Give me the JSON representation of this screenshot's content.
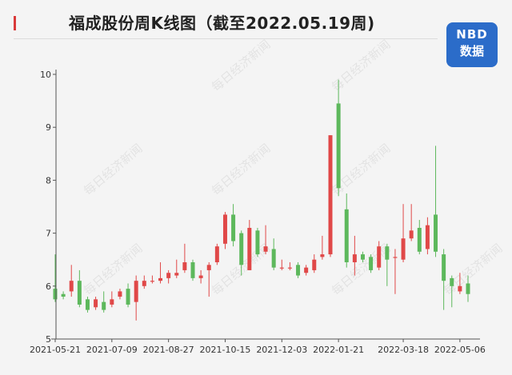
{
  "header": {
    "title": "福成股份周K线图（截至2022.05.19周)",
    "logo_top": "NBD",
    "logo_bottom": "数据"
  },
  "watermark": "每日经济新闻",
  "colors": {
    "up": "#e04848",
    "down": "#5db85c",
    "axis": "#555555",
    "bg": "#f4f4f4"
  },
  "chart_data": {
    "type": "candlestick",
    "title": "福成股份周K线图（截至2022.05.19周)",
    "ylim": [
      5,
      10
    ],
    "yticks": [
      5,
      6,
      7,
      8,
      9,
      10
    ],
    "xticks": [
      "2021-05-21",
      "2021-07-09",
      "2021-08-27",
      "2021-10-15",
      "2021-12-03",
      "2022-01-21",
      "2022-03-18",
      "2022-05-06"
    ],
    "xtick_index": [
      0,
      7,
      14,
      21,
      28,
      35,
      43,
      50
    ],
    "candles": [
      {
        "o": 5.95,
        "c": 5.75,
        "h": 6.6,
        "l": 5.7
      },
      {
        "o": 5.85,
        "c": 5.8,
        "h": 5.9,
        "l": 5.75
      },
      {
        "o": 5.9,
        "c": 6.1,
        "h": 6.4,
        "l": 5.8
      },
      {
        "o": 6.1,
        "c": 5.65,
        "h": 6.3,
        "l": 5.6
      },
      {
        "o": 5.75,
        "c": 5.55,
        "h": 5.8,
        "l": 5.5
      },
      {
        "o": 5.6,
        "c": 5.75,
        "h": 5.8,
        "l": 5.55
      },
      {
        "o": 5.7,
        "c": 5.55,
        "h": 5.9,
        "l": 5.5
      },
      {
        "o": 5.65,
        "c": 5.75,
        "h": 5.9,
        "l": 5.6
      },
      {
        "o": 5.8,
        "c": 5.9,
        "h": 5.95,
        "l": 5.75
      },
      {
        "o": 5.95,
        "c": 5.65,
        "h": 6.05,
        "l": 5.6
      },
      {
        "o": 5.7,
        "c": 6.1,
        "h": 6.2,
        "l": 5.35
      },
      {
        "o": 6.0,
        "c": 6.1,
        "h": 6.2,
        "l": 5.95
      },
      {
        "o": 6.1,
        "c": 6.1,
        "h": 6.2,
        "l": 6.05
      },
      {
        "o": 6.1,
        "c": 6.15,
        "h": 6.45,
        "l": 6.05
      },
      {
        "o": 6.15,
        "c": 6.25,
        "h": 6.3,
        "l": 6.05
      },
      {
        "o": 6.2,
        "c": 6.25,
        "h": 6.5,
        "l": 6.15
      },
      {
        "o": 6.3,
        "c": 6.45,
        "h": 6.8,
        "l": 6.25
      },
      {
        "o": 6.45,
        "c": 6.15,
        "h": 6.5,
        "l": 6.1
      },
      {
        "o": 6.15,
        "c": 6.2,
        "h": 6.3,
        "l": 6.05
      },
      {
        "o": 6.3,
        "c": 6.4,
        "h": 6.45,
        "l": 5.8
      },
      {
        "o": 6.45,
        "c": 6.75,
        "h": 6.8,
        "l": 6.4
      },
      {
        "o": 6.8,
        "c": 7.35,
        "h": 7.4,
        "l": 6.7
      },
      {
        "o": 7.35,
        "c": 6.85,
        "h": 7.55,
        "l": 6.75
      },
      {
        "o": 7.0,
        "c": 6.4,
        "h": 7.05,
        "l": 6.2
      },
      {
        "o": 6.3,
        "c": 7.1,
        "h": 7.25,
        "l": 6.3
      },
      {
        "o": 7.05,
        "c": 6.6,
        "h": 7.1,
        "l": 6.55
      },
      {
        "o": 6.65,
        "c": 6.75,
        "h": 7.15,
        "l": 6.6
      },
      {
        "o": 6.7,
        "c": 6.35,
        "h": 6.9,
        "l": 6.3
      },
      {
        "o": 6.35,
        "c": 6.35,
        "h": 6.5,
        "l": 6.3
      },
      {
        "o": 6.35,
        "c": 6.35,
        "h": 6.45,
        "l": 6.3
      },
      {
        "o": 6.4,
        "c": 6.2,
        "h": 6.45,
        "l": 6.15
      },
      {
        "o": 6.25,
        "c": 6.35,
        "h": 6.4,
        "l": 6.2
      },
      {
        "o": 6.3,
        "c": 6.5,
        "h": 6.6,
        "l": 6.25
      },
      {
        "o": 6.55,
        "c": 6.6,
        "h": 6.95,
        "l": 6.5
      },
      {
        "o": 6.6,
        "c": 8.85,
        "h": 8.85,
        "l": 6.55
      },
      {
        "o": 9.45,
        "c": 7.85,
        "h": 9.9,
        "l": 7.7
      },
      {
        "o": 7.45,
        "c": 6.45,
        "h": 7.75,
        "l": 6.35
      },
      {
        "o": 6.45,
        "c": 6.6,
        "h": 6.95,
        "l": 6.2
      },
      {
        "o": 6.6,
        "c": 6.5,
        "h": 6.65,
        "l": 6.45
      },
      {
        "o": 6.55,
        "c": 6.3,
        "h": 6.6,
        "l": 6.25
      },
      {
        "o": 6.35,
        "c": 6.75,
        "h": 6.85,
        "l": 6.3
      },
      {
        "o": 6.75,
        "c": 6.5,
        "h": 6.8,
        "l": 6.0
      },
      {
        "o": 6.55,
        "c": 6.55,
        "h": 6.7,
        "l": 5.85
      },
      {
        "o": 6.5,
        "c": 6.9,
        "h": 7.55,
        "l": 6.45
      },
      {
        "o": 6.9,
        "c": 7.05,
        "h": 7.55,
        "l": 6.85
      },
      {
        "o": 7.1,
        "c": 6.65,
        "h": 7.25,
        "l": 6.6
      },
      {
        "o": 6.7,
        "c": 7.15,
        "h": 7.3,
        "l": 6.6
      },
      {
        "o": 7.35,
        "c": 6.65,
        "h": 8.65,
        "l": 6.55
      },
      {
        "o": 6.6,
        "c": 6.1,
        "h": 6.7,
        "l": 5.55
      },
      {
        "o": 6.15,
        "c": 6.0,
        "h": 6.2,
        "l": 5.6
      },
      {
        "o": 5.9,
        "c": 6.0,
        "h": 6.25,
        "l": 5.85
      },
      {
        "o": 6.05,
        "c": 5.85,
        "h": 6.2,
        "l": 5.7
      }
    ]
  }
}
